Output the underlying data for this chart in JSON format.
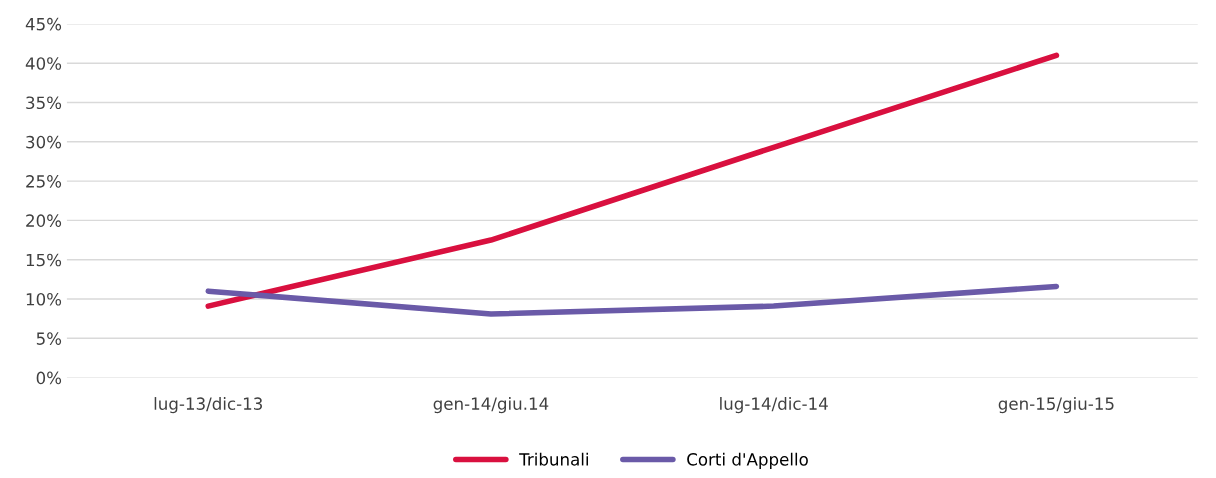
{
  "chart_data": {
    "type": "line",
    "categories": [
      "lug-13/dic-13",
      "gen-14/giu.14",
      "lug-14/dic-14",
      "gen-15/giu-15"
    ],
    "series": [
      {
        "name": "Tribunali",
        "color": "#d9103f",
        "values": [
          9.1,
          17.5,
          29.3,
          41.0
        ]
      },
      {
        "name": "Corti d'Appello",
        "color": "#6a5aa8",
        "values": [
          11.0,
          8.1,
          9.1,
          11.6
        ]
      }
    ],
    "ylim": [
      0,
      45
    ],
    "yticks": [
      {
        "value": 0,
        "label": "0%"
      },
      {
        "value": 5,
        "label": "5%"
      },
      {
        "value": 10,
        "label": "10%"
      },
      {
        "value": 15,
        "label": "15%"
      },
      {
        "value": 20,
        "label": "20%"
      },
      {
        "value": 25,
        "label": "25%"
      },
      {
        "value": 30,
        "label": "30%"
      },
      {
        "value": 35,
        "label": "35%"
      },
      {
        "value": 40,
        "label": "40%"
      },
      {
        "value": 45,
        "label": "45%"
      }
    ],
    "grid": "y",
    "legend": "bottom"
  }
}
